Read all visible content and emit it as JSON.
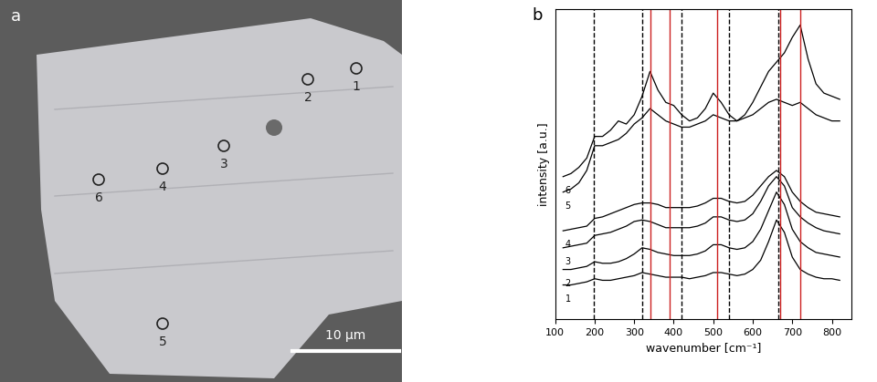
{
  "image_panel": {
    "label": "a",
    "spot_labels": [
      "1",
      "2",
      "3",
      "4",
      "5",
      "6"
    ],
    "scale_bar": "10 μm"
  },
  "chart_data": {
    "type": "line",
    "title": "b",
    "x_label": "wavenumber [cm⁻¹]",
    "y_label": "intensity [a.u.]",
    "xlim": [
      100,
      850
    ],
    "xticks": [
      100,
      200,
      300,
      400,
      500,
      600,
      700,
      800
    ],
    "ylim": [
      0,
      10
    ],
    "tick_labels": "x",
    "x": [
      120,
      140,
      160,
      180,
      200,
      220,
      240,
      260,
      280,
      300,
      320,
      340,
      360,
      380,
      400,
      420,
      440,
      460,
      480,
      500,
      520,
      540,
      560,
      580,
      600,
      620,
      640,
      660,
      680,
      700,
      720,
      740,
      760,
      780,
      800,
      820
    ],
    "series": [
      {
        "name": "1",
        "color": "#000000",
        "values": [
          1.1,
          1.1,
          1.15,
          1.2,
          1.3,
          1.25,
          1.25,
          1.3,
          1.35,
          1.4,
          1.5,
          1.45,
          1.4,
          1.35,
          1.35,
          1.35,
          1.3,
          1.35,
          1.4,
          1.5,
          1.5,
          1.45,
          1.4,
          1.45,
          1.6,
          1.9,
          2.5,
          3.2,
          2.8,
          2.0,
          1.6,
          1.45,
          1.35,
          1.3,
          1.3,
          1.25
        ]
      },
      {
        "name": "2",
        "color": "#000000",
        "values": [
          1.6,
          1.6,
          1.65,
          1.7,
          1.85,
          1.8,
          1.8,
          1.85,
          1.95,
          2.1,
          2.3,
          2.25,
          2.15,
          2.1,
          2.05,
          2.05,
          2.05,
          2.1,
          2.2,
          2.4,
          2.4,
          2.3,
          2.25,
          2.3,
          2.5,
          2.9,
          3.5,
          4.1,
          3.7,
          2.9,
          2.5,
          2.3,
          2.15,
          2.1,
          2.05,
          2.0
        ]
      },
      {
        "name": "3",
        "color": "#000000",
        "values": [
          2.3,
          2.35,
          2.4,
          2.45,
          2.7,
          2.75,
          2.8,
          2.9,
          3.0,
          3.15,
          3.2,
          3.15,
          3.05,
          2.95,
          2.95,
          2.95,
          2.95,
          3.0,
          3.1,
          3.3,
          3.3,
          3.2,
          3.15,
          3.2,
          3.4,
          3.8,
          4.3,
          4.6,
          4.3,
          3.6,
          3.3,
          3.1,
          2.95,
          2.85,
          2.8,
          2.75
        ]
      },
      {
        "name": "4",
        "color": "#000000",
        "values": [
          2.85,
          2.9,
          2.95,
          3.0,
          3.25,
          3.3,
          3.4,
          3.5,
          3.6,
          3.7,
          3.75,
          3.75,
          3.7,
          3.6,
          3.6,
          3.6,
          3.6,
          3.65,
          3.75,
          3.9,
          3.9,
          3.8,
          3.75,
          3.8,
          4.0,
          4.3,
          4.6,
          4.8,
          4.6,
          4.1,
          3.8,
          3.6,
          3.45,
          3.4,
          3.35,
          3.3
        ]
      },
      {
        "name": "5",
        "color": "#000000",
        "values": [
          4.1,
          4.2,
          4.4,
          4.8,
          5.6,
          5.6,
          5.7,
          5.8,
          6.0,
          6.3,
          6.5,
          6.8,
          6.6,
          6.4,
          6.3,
          6.2,
          6.2,
          6.3,
          6.4,
          6.6,
          6.5,
          6.4,
          6.4,
          6.5,
          6.6,
          6.8,
          7.0,
          7.1,
          7.0,
          6.9,
          7.0,
          6.8,
          6.6,
          6.5,
          6.4,
          6.4
        ]
      },
      {
        "name": "6",
        "color": "#000000",
        "values": [
          4.6,
          4.7,
          4.9,
          5.2,
          5.9,
          5.9,
          6.1,
          6.4,
          6.3,
          6.6,
          7.2,
          8.0,
          7.4,
          7.0,
          6.9,
          6.6,
          6.4,
          6.5,
          6.8,
          7.3,
          7.0,
          6.6,
          6.4,
          6.6,
          7.0,
          7.5,
          8.0,
          8.3,
          8.6,
          9.1,
          9.5,
          8.4,
          7.6,
          7.3,
          7.2,
          7.1
        ]
      }
    ],
    "vertical_lines": [
      {
        "x": 197,
        "color": "#000000",
        "line_style": "dashed"
      },
      {
        "x": 320,
        "color": "#000000",
        "line_style": "dashed"
      },
      {
        "x": 420,
        "color": "#000000",
        "line_style": "dashed"
      },
      {
        "x": 540,
        "color": "#000000",
        "line_style": "dashed"
      },
      {
        "x": 665,
        "color": "#000000",
        "line_style": "dashed"
      },
      {
        "x": 340,
        "color": "#cc2222",
        "line_style": "solid"
      },
      {
        "x": 390,
        "color": "#cc2222",
        "line_style": "solid"
      },
      {
        "x": 510,
        "color": "#cc2222",
        "line_style": "solid"
      },
      {
        "x": 670,
        "color": "#cc2222",
        "line_style": "solid"
      },
      {
        "x": 720,
        "color": "#cc2222",
        "line_style": "solid"
      }
    ]
  }
}
